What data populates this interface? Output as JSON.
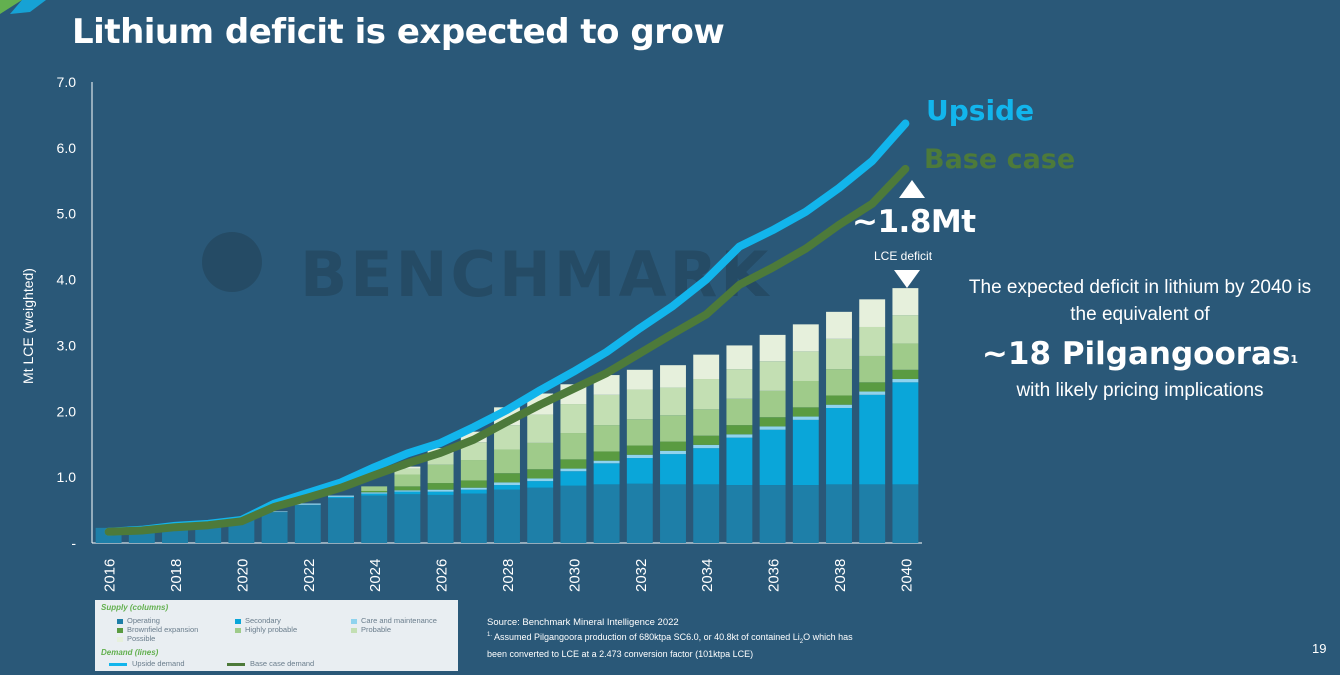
{
  "slide": {
    "title": "Lithium deficit is expected to grow",
    "page_number": "19"
  },
  "watermark": {
    "text": "BENCHMARK"
  },
  "annotations": {
    "upside_label": "Upside",
    "base_case_label": "Base case",
    "deficit_value": "~1.8Mt",
    "deficit_sub": "LCE deficit"
  },
  "callout": {
    "line1": "The expected deficit in lithium by 2040 is",
    "line2": "the equivalent of",
    "big": "~18 Pilgangooras",
    "big_sup": "1",
    "line3": "with likely pricing implications"
  },
  "legend": {
    "supply_title": "Supply (columns)",
    "demand_title": "Demand (lines)",
    "supply_items": [
      {
        "label": "Operating",
        "color": "#1e7fa8"
      },
      {
        "label": "Secondary",
        "color": "#0aa6d9"
      },
      {
        "label": "Care and maintenance",
        "color": "#8fd3ee"
      },
      {
        "label": "Brownfield expansion",
        "color": "#5a9b41"
      },
      {
        "label": "Highly probable",
        "color": "#9fcb8a"
      },
      {
        "label": "Probable",
        "color": "#c3dfb3"
      },
      {
        "label": "Possible",
        "color": "#e6f0dc"
      }
    ],
    "demand_items": [
      {
        "label": "Upside demand",
        "color": "#12b5ec"
      },
      {
        "label": "Base case demand",
        "color": "#4d7a3a"
      }
    ]
  },
  "source": {
    "line1": "Source: Benchmark Mineral Intelligence 2022",
    "fn_mark": "1.",
    "fn_a": " Assumed Pilgangoora production of 680ktpa SC6.0, or 40.8kt of  contained Li",
    "fn_sub": "2",
    "fn_b": "O which has",
    "fn_line2": "been converted to LCE at a 2.473 conversion factor (101ktpa LCE)"
  },
  "chart_data": {
    "type": "bar",
    "ylabel": "Mt LCE (weighted)",
    "xlabel": "",
    "ylim": [
      0,
      7
    ],
    "y_ticks": [
      0,
      1,
      2,
      3,
      4,
      5,
      6,
      7
    ],
    "y_tick_labels": [
      "-",
      "1.0",
      "2.0",
      "3.0",
      "4.0",
      "5.0",
      "6.0",
      "7.0"
    ],
    "stacked": true,
    "categories": [
      2016,
      2017,
      2018,
      2019,
      2020,
      2021,
      2022,
      2023,
      2024,
      2025,
      2026,
      2027,
      2028,
      2029,
      2030,
      2031,
      2032,
      2033,
      2034,
      2035,
      2036,
      2037,
      2038,
      2039,
      2040
    ],
    "x_tick_labels": [
      "2016",
      "2018",
      "2020",
      "2022",
      "2024",
      "2026",
      "2028",
      "2030",
      "2032",
      "2034",
      "2036",
      "2038",
      "2040"
    ],
    "series": [
      {
        "name": "Operating",
        "color": "#1e7fa8",
        "values": [
          0.23,
          0.24,
          0.28,
          0.31,
          0.37,
          0.47,
          0.58,
          0.68,
          0.72,
          0.74,
          0.73,
          0.75,
          0.81,
          0.84,
          0.87,
          0.89,
          0.9,
          0.89,
          0.89,
          0.88,
          0.88,
          0.88,
          0.89,
          0.89,
          0.89
        ]
      },
      {
        "name": "Secondary",
        "color": "#0aa6d9",
        "values": [
          0,
          0,
          0,
          0,
          0,
          0,
          0,
          0.02,
          0.03,
          0.04,
          0.05,
          0.06,
          0.07,
          0.1,
          0.22,
          0.32,
          0.39,
          0.46,
          0.55,
          0.72,
          0.84,
          0.99,
          1.16,
          1.36,
          1.55
        ]
      },
      {
        "name": "Care and maintenance",
        "color": "#8fd3ee",
        "values": [
          0,
          0,
          0,
          0,
          0,
          0.01,
          0.02,
          0.02,
          0.02,
          0.02,
          0.03,
          0.03,
          0.04,
          0.04,
          0.04,
          0.04,
          0.05,
          0.05,
          0.05,
          0.05,
          0.05,
          0.05,
          0.05,
          0.05,
          0.05
        ]
      },
      {
        "name": "Brownfield expansion",
        "color": "#5a9b41",
        "values": [
          0,
          0,
          0,
          0,
          0,
          0,
          0,
          0,
          0.02,
          0.06,
          0.1,
          0.11,
          0.14,
          0.14,
          0.14,
          0.14,
          0.14,
          0.14,
          0.14,
          0.14,
          0.14,
          0.14,
          0.14,
          0.14,
          0.14
        ]
      },
      {
        "name": "Highly probable",
        "color": "#9fcb8a",
        "values": [
          0,
          0,
          0,
          0,
          0,
          0,
          0,
          0,
          0.07,
          0.18,
          0.28,
          0.31,
          0.36,
          0.4,
          0.4,
          0.4,
          0.4,
          0.4,
          0.4,
          0.4,
          0.4,
          0.4,
          0.4,
          0.4,
          0.4
        ]
      },
      {
        "name": "Probable",
        "color": "#c3dfb3",
        "values": [
          0,
          0,
          0,
          0,
          0,
          0,
          0,
          0,
          0,
          0.09,
          0.17,
          0.27,
          0.37,
          0.43,
          0.44,
          0.46,
          0.45,
          0.42,
          0.46,
          0.45,
          0.45,
          0.45,
          0.46,
          0.44,
          0.43
        ]
      },
      {
        "name": "Possible",
        "color": "#e6f0dc",
        "values": [
          0,
          0,
          0,
          0,
          0,
          0,
          0,
          0,
          0,
          0.03,
          0.08,
          0.16,
          0.27,
          0.32,
          0.3,
          0.3,
          0.3,
          0.34,
          0.37,
          0.36,
          0.4,
          0.41,
          0.41,
          0.42,
          0.41
        ]
      }
    ],
    "lines": [
      {
        "name": "Upside demand",
        "color": "#12b5ec",
        "values": [
          0.17,
          0.2,
          0.26,
          0.29,
          0.35,
          0.6,
          0.76,
          0.92,
          1.15,
          1.36,
          1.52,
          1.76,
          2.02,
          2.32,
          2.6,
          2.9,
          3.26,
          3.6,
          4.0,
          4.5,
          4.75,
          5.03,
          5.39,
          5.8,
          6.37
        ]
      },
      {
        "name": "Base case demand",
        "color": "#4d7a3a",
        "values": [
          0.17,
          0.19,
          0.24,
          0.27,
          0.33,
          0.55,
          0.69,
          0.84,
          1.03,
          1.21,
          1.37,
          1.57,
          1.84,
          2.1,
          2.34,
          2.58,
          2.88,
          3.18,
          3.47,
          3.92,
          4.18,
          4.47,
          4.83,
          5.15,
          5.68
        ]
      }
    ]
  }
}
